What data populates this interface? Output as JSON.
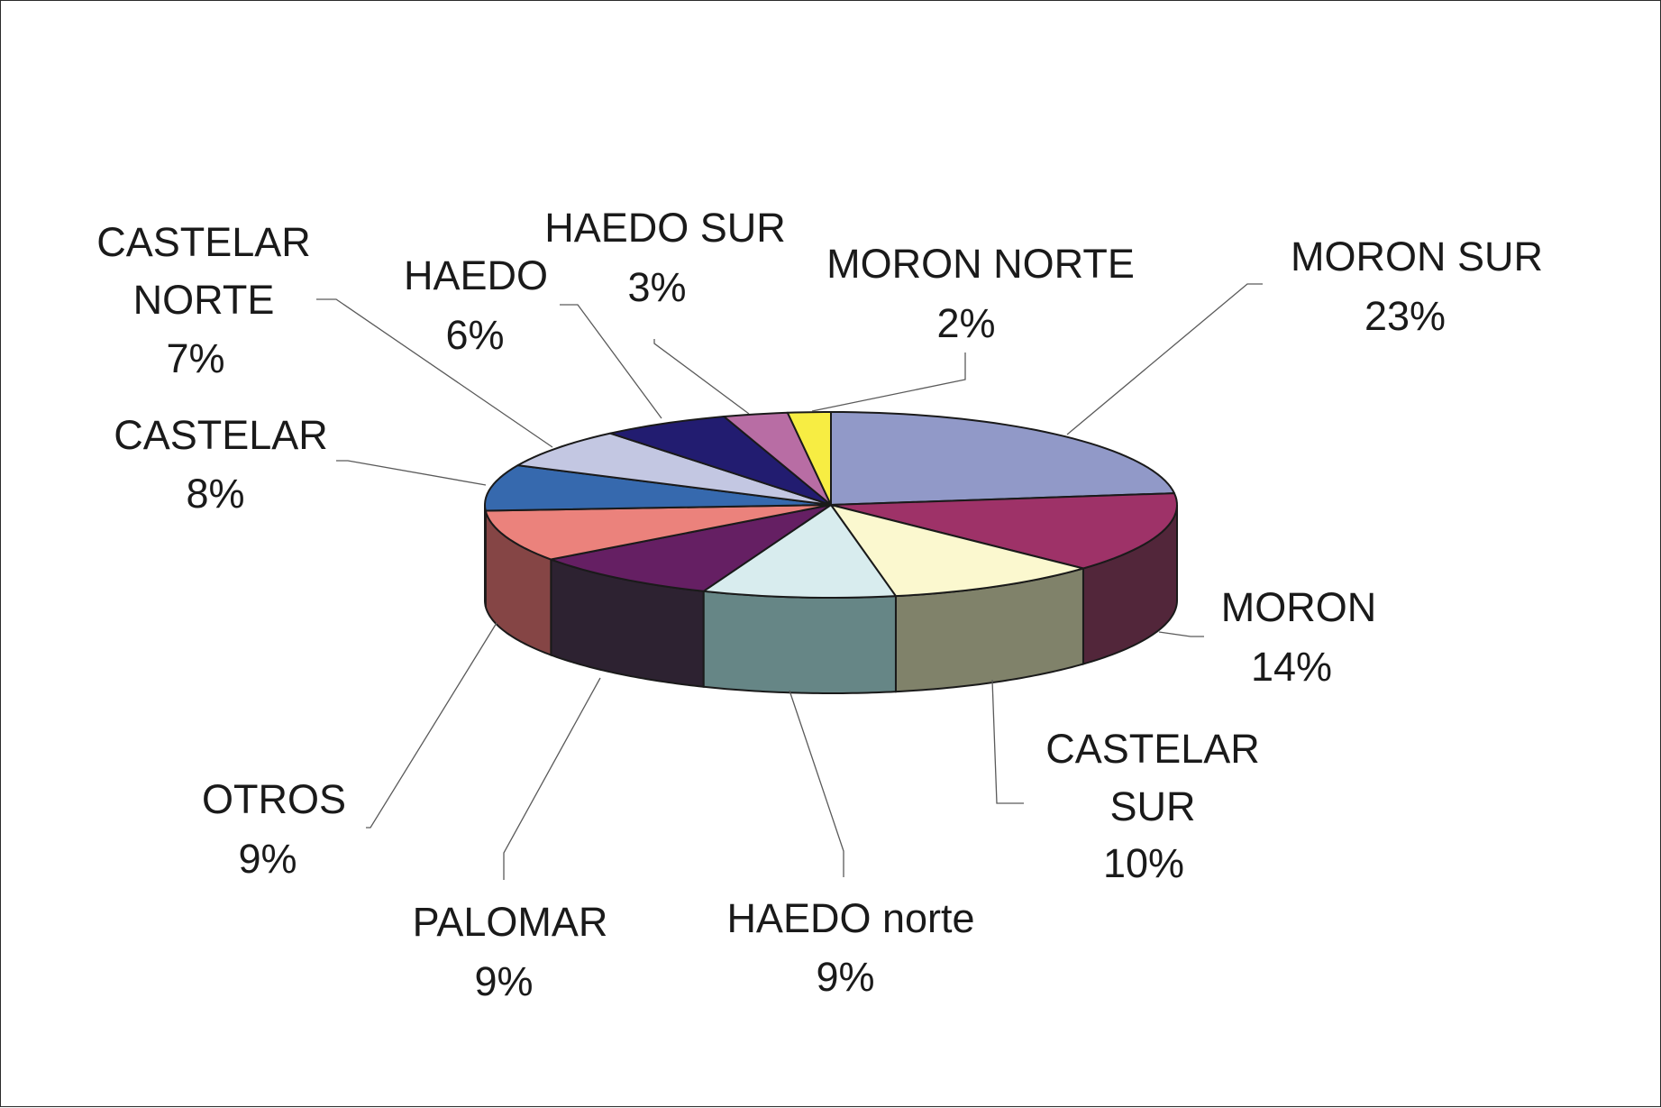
{
  "chart_data": {
    "type": "pie",
    "title": "",
    "variant": "3d-pie",
    "start_angle_deg": 90,
    "direction": "clockwise",
    "slices": [
      {
        "label": "MORON SUR",
        "percent": "23%",
        "value": 23,
        "color": "#9199c8",
        "side_color": "#5d6185"
      },
      {
        "label": "MORON",
        "percent": "14%",
        "value": 14,
        "color": "#9e3268",
        "side_color": "#52263a"
      },
      {
        "label": "CASTELAR SUR",
        "percent": "10%",
        "value": 10,
        "color": "#fbf8cf",
        "side_color": "#80826a"
      },
      {
        "label": "HAEDO norte",
        "percent": "9%",
        "value": 9,
        "color": "#d8ecee",
        "side_color": "#668686"
      },
      {
        "label": "PALOMAR",
        "percent": "9%",
        "value": 9,
        "color": "#651f63",
        "side_color": "#2d2231"
      },
      {
        "label": "OTROS",
        "percent": "9%",
        "value": 9,
        "color": "#eb827c",
        "side_color": "#854545"
      },
      {
        "label": "CASTELAR",
        "percent": "8%",
        "value": 8,
        "color": "#3669ae",
        "side_color": "#223f6a"
      },
      {
        "label": "CASTELAR NORTE",
        "percent": "7%",
        "value": 7,
        "color": "#c3c7e2",
        "side_color": "#7b7e93"
      },
      {
        "label": "HAEDO",
        "percent": "6%",
        "value": 6,
        "color": "#221c70",
        "side_color": "#161245"
      },
      {
        "label": "HAEDO SUR",
        "percent": "3%",
        "value": 3,
        "color": "#b86da4",
        "side_color": "#6e3f63"
      },
      {
        "label": "MORON NORTE",
        "percent": "2%",
        "value": 2,
        "color": "#f7ed43",
        "side_color": "#8f8a28"
      }
    ]
  }
}
